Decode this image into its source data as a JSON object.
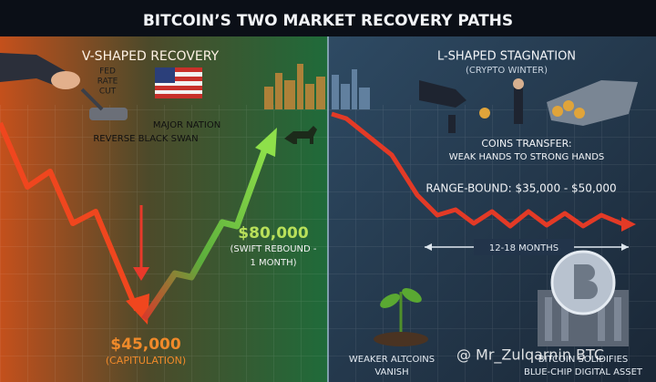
{
  "header": {
    "title": "BITCOIN’S TWO MARKET RECOVERY PATHS"
  },
  "left_panel": {
    "heading": "V-SHAPED RECOVERY",
    "fed_rate_cut": [
      "FED",
      "RATE",
      "CUT"
    ],
    "major_nation": [
      "MAJOR NATION",
      "REVERSE BLACK SWAN"
    ],
    "rebound": {
      "price": "$80,000",
      "note": [
        "(SWIFT REBOUND -",
        "1 MONTH)"
      ]
    },
    "bottom": {
      "price": "$45,000",
      "note": "(CAPITULATION)"
    }
  },
  "right_panel": {
    "heading": "L-SHAPED STAGNATION",
    "subheading": "(CRYPTO WINTER)",
    "coins_transfer": [
      "COINS TRANSFER:",
      "WEAK HANDS TO STRONG HANDS"
    ],
    "range": "RANGE-BOUND: $35,000 - $50,000",
    "duration": "12-18 MONTHS",
    "altcoins": [
      "WEAKER ALTCOINS",
      "VANISH"
    ],
    "bitcoin": [
      "BITCOIN SOLIDIFIES",
      "BLUE-CHIP DIGITAL ASSET"
    ]
  },
  "watermark": "@ Mr_Zulqarnin BTC"
}
